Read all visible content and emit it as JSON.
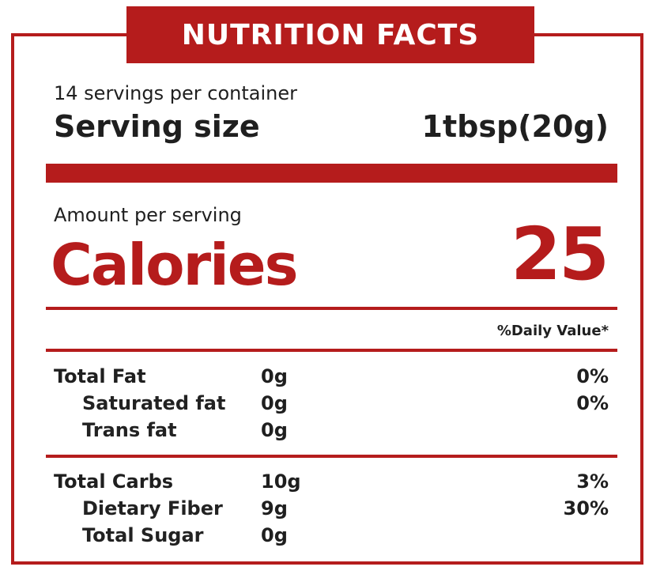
{
  "header": {
    "title": "NUTRITION FACTS"
  },
  "serving": {
    "servings_per_container": "14 servings per container",
    "size_label": "Serving size",
    "size_value": "1tbsp(20g)"
  },
  "calories": {
    "amount_label": "Amount per serving",
    "label": "Calories",
    "value": "25"
  },
  "daily_value_header": "%Daily Value*",
  "nutrients": [
    {
      "name": "Total Fat",
      "amount": "0g",
      "dv": "0%"
    },
    {
      "name": "Saturated fat",
      "amount": "0g",
      "dv": "0%"
    },
    {
      "name": "Trans fat",
      "amount": "0g",
      "dv": ""
    },
    {
      "name": "Total Carbs",
      "amount": "10g",
      "dv": "3%"
    },
    {
      "name": "Dietary Fiber",
      "amount": "9g",
      "dv": "30%"
    },
    {
      "name": "Total Sugar",
      "amount": "0g",
      "dv": ""
    }
  ],
  "colors": {
    "accent": "#b51c1c",
    "text": "#1f1f1f",
    "background": "#ffffff"
  }
}
